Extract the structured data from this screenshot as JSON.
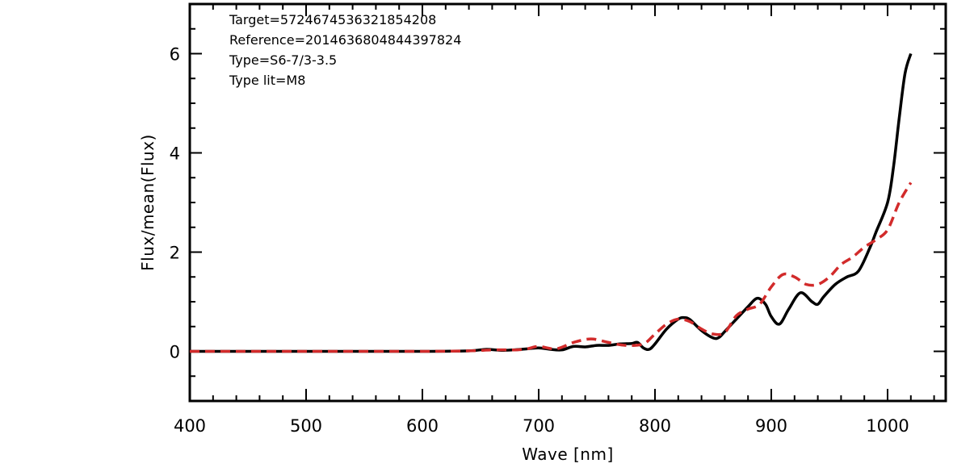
{
  "chart_data": {
    "type": "line",
    "xlabel": "Wave [nm]",
    "ylabel": "Flux/mean(Flux)",
    "xlim": [
      400,
      1050
    ],
    "ylim": [
      -1,
      7
    ],
    "xticks": [
      400,
      500,
      600,
      700,
      800,
      900,
      1000
    ],
    "yticks": [
      0,
      2,
      4,
      6
    ],
    "xminor_step": 20,
    "yminor_step": 0.5,
    "grid": false,
    "annotations": [
      "Target=5724674536321854208",
      "Reference=2014636804844397824",
      "Type=S6-7/3-3.5",
      "Type lit=M8"
    ],
    "series": [
      {
        "color": "#000000",
        "dash": "solid",
        "x": [
          400,
          500,
          600,
          640,
          655,
          670,
          690,
          700,
          710,
          720,
          730,
          740,
          750,
          760,
          770,
          780,
          785,
          790,
          795,
          800,
          810,
          820,
          825,
          830,
          840,
          850,
          855,
          860,
          870,
          880,
          888,
          895,
          900,
          907,
          915,
          925,
          935,
          940,
          945,
          955,
          965,
          975,
          985,
          990,
          1000,
          1005,
          1010,
          1015,
          1020
        ],
        "y": [
          0,
          0,
          0,
          0.01,
          0.04,
          0.02,
          0.05,
          0.07,
          0.04,
          0.03,
          0.1,
          0.09,
          0.12,
          0.12,
          0.15,
          0.16,
          0.18,
          0.07,
          0.04,
          0.15,
          0.45,
          0.65,
          0.68,
          0.64,
          0.42,
          0.27,
          0.28,
          0.4,
          0.65,
          0.9,
          1.07,
          0.95,
          0.7,
          0.55,
          0.85,
          1.18,
          1.0,
          0.95,
          1.1,
          1.35,
          1.5,
          1.62,
          2.1,
          2.4,
          3.0,
          3.7,
          4.7,
          5.6,
          6.0
        ]
      },
      {
        "color": "#d22b2b",
        "dash": "dashed",
        "x": [
          400,
          500,
          600,
          640,
          660,
          680,
          690,
          700,
          715,
          730,
          745,
          760,
          775,
          790,
          800,
          810,
          820,
          830,
          840,
          850,
          860,
          870,
          880,
          890,
          900,
          910,
          920,
          930,
          940,
          950,
          960,
          970,
          980,
          990,
          1000,
          1010,
          1020
        ],
        "y": [
          0,
          0,
          0,
          0.01,
          0.03,
          0.03,
          0.05,
          0.1,
          0.05,
          0.18,
          0.25,
          0.18,
          0.12,
          0.15,
          0.35,
          0.55,
          0.65,
          0.6,
          0.45,
          0.35,
          0.38,
          0.72,
          0.85,
          0.95,
          1.3,
          1.55,
          1.5,
          1.35,
          1.35,
          1.5,
          1.75,
          1.9,
          2.1,
          2.25,
          2.45,
          3.0,
          3.4
        ]
      }
    ]
  }
}
